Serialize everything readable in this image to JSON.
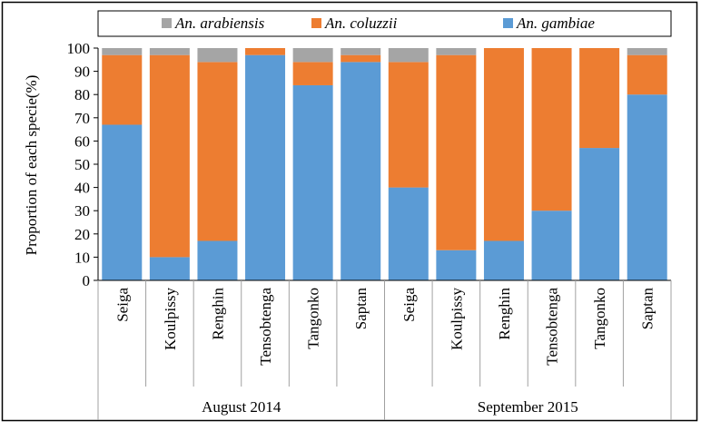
{
  "chart_data": {
    "type": "bar",
    "stacked": true,
    "ylabel": "Proportion of each specie(%)",
    "ylim": [
      0,
      100
    ],
    "yticks": [
      0,
      10,
      20,
      30,
      40,
      50,
      60,
      70,
      80,
      90,
      100
    ],
    "legend_position": "top",
    "categories": [
      "Seiga",
      "Koulpissy",
      "Renghin",
      "Tensobtenga",
      "Tangonko",
      "Saptan",
      "Seiga",
      "Koulpissy",
      "Renghin",
      "Tensobtenga",
      "Tangonko",
      "Saptan"
    ],
    "groups": [
      {
        "label": "August 2014",
        "count": 6
      },
      {
        "label": "September 2015",
        "count": 6
      }
    ],
    "series": [
      {
        "name": "An. gambiae",
        "color": "#5b9bd5",
        "values": [
          67,
          10,
          17,
          97,
          84,
          94,
          40,
          13,
          17,
          30,
          57,
          80
        ]
      },
      {
        "name": "An. coluzzii",
        "color": "#ed7d31",
        "values": [
          30,
          87,
          77,
          3,
          10,
          3,
          54,
          84,
          83,
          70,
          43,
          17
        ]
      },
      {
        "name": "An. arabiensis",
        "color": "#a5a5a5",
        "values": [
          3,
          3,
          6,
          0,
          6,
          3,
          6,
          3,
          0,
          0,
          0,
          3
        ]
      }
    ],
    "legend_order": [
      "An. arabiensis",
      "An. coluzzii",
      "An. gambiae"
    ]
  }
}
